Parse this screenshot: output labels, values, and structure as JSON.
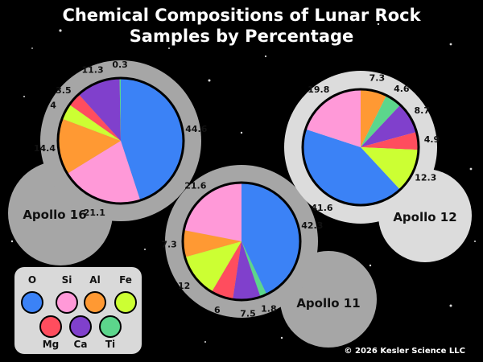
{
  "title_line1": "Chemical Compositions of Lunar Rock",
  "title_line2": "Samples by Percentage",
  "copyright": "© 2026 Kesler Science LLC",
  "colors": {
    "O": "#3b82f6",
    "Si": "#ff99d8",
    "Al": "#ff9933",
    "Fe": "#ccff33",
    "Mg": "#ff4d5e",
    "Ca": "#8040cc",
    "Ti": "#5cd68c"
  },
  "legend": [
    "O",
    "Si",
    "Al",
    "Fe",
    "Mg",
    "Ca",
    "Ti"
  ],
  "chart_data": [
    {
      "type": "pie",
      "title": "Apollo 16",
      "slices": [
        {
          "label": "O",
          "value": 44.6
        },
        {
          "label": "Si",
          "value": 21.1
        },
        {
          "label": "Al",
          "value": 14.4
        },
        {
          "label": "Fe",
          "value": 4.0
        },
        {
          "label": "Mg",
          "value": 3.5
        },
        {
          "label": "Ca",
          "value": 11.3
        },
        {
          "label": "Ti",
          "value": 0.3
        }
      ]
    },
    {
      "type": "pie",
      "title": "Apollo 11",
      "slices": [
        {
          "label": "O",
          "value": 42.3
        },
        {
          "label": "Ti",
          "value": 1.8
        },
        {
          "label": "Ca",
          "value": 7.5
        },
        {
          "label": "Mg",
          "value": 6.0
        },
        {
          "label": "Fe",
          "value": 12.0
        },
        {
          "label": "Al",
          "value": 7.3
        },
        {
          "label": "Si",
          "value": 21.6
        }
      ]
    },
    {
      "type": "pie",
      "title": "Apollo 12",
      "slices": [
        {
          "label": "Al",
          "value": 7.3
        },
        {
          "label": "Ti",
          "value": 4.6
        },
        {
          "label": "Ca",
          "value": 8.7
        },
        {
          "label": "Mg",
          "value": 4.9
        },
        {
          "label": "Fe",
          "value": 12.3
        },
        {
          "label": "O",
          "value": 41.6
        },
        {
          "label": "Si",
          "value": 19.8
        }
      ]
    }
  ]
}
